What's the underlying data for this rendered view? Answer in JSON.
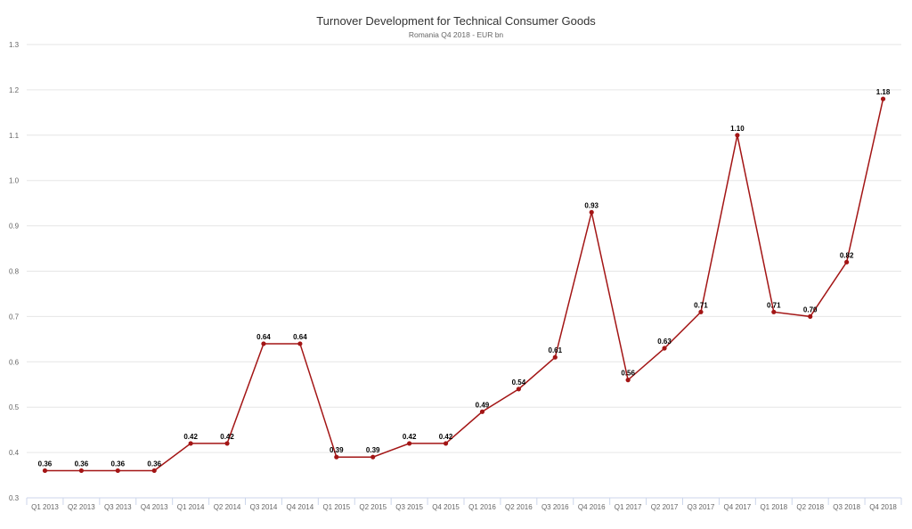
{
  "chart_data": {
    "type": "line",
    "title": "Turnover Development for Technical Consumer Goods",
    "subtitle": "Romania Q4 2018 - EUR bn",
    "xlabel": "",
    "ylabel": "",
    "ylim": [
      0.3,
      1.3
    ],
    "yticks": [
      "0.3",
      "0.4",
      "0.5",
      "0.6",
      "0.7",
      "0.8",
      "0.9",
      "1.0",
      "1.1",
      "1.2",
      "1.3"
    ],
    "grid": true,
    "categories": [
      "Q1 2013",
      "Q2 2013",
      "Q3 2013",
      "Q4 2013",
      "Q1 2014",
      "Q2 2014",
      "Q3 2014",
      "Q4 2014",
      "Q1 2015",
      "Q2 2015",
      "Q3 2015",
      "Q4 2015",
      "Q1 2016",
      "Q2 2016",
      "Q3 2016",
      "Q4 2016",
      "Q1 2017",
      "Q2 2017",
      "Q3 2017",
      "Q4 2017",
      "Q1 2018",
      "Q2 2018",
      "Q3 2018",
      "Q4 2018"
    ],
    "series": [
      {
        "name": "Turnover",
        "color": "#a31515",
        "values": [
          0.36,
          0.36,
          0.36,
          0.36,
          0.42,
          0.42,
          0.64,
          0.64,
          0.39,
          0.39,
          0.42,
          0.42,
          0.49,
          0.54,
          0.61,
          0.93,
          0.56,
          0.63,
          0.71,
          1.1,
          0.71,
          0.7,
          0.82,
          1.18
        ],
        "labels": [
          "0.36",
          "0.36",
          "0.36",
          "0.36",
          "0.42",
          "0.42",
          "0.64",
          "0.64",
          "0.39",
          "0.39",
          "0.42",
          "0.42",
          "0.49",
          "0.54",
          "0.61",
          "0.93",
          "0.56",
          "0.63",
          "0.71",
          "1.10",
          "0.71",
          "0.70",
          "0.82",
          "1.18"
        ]
      }
    ]
  }
}
